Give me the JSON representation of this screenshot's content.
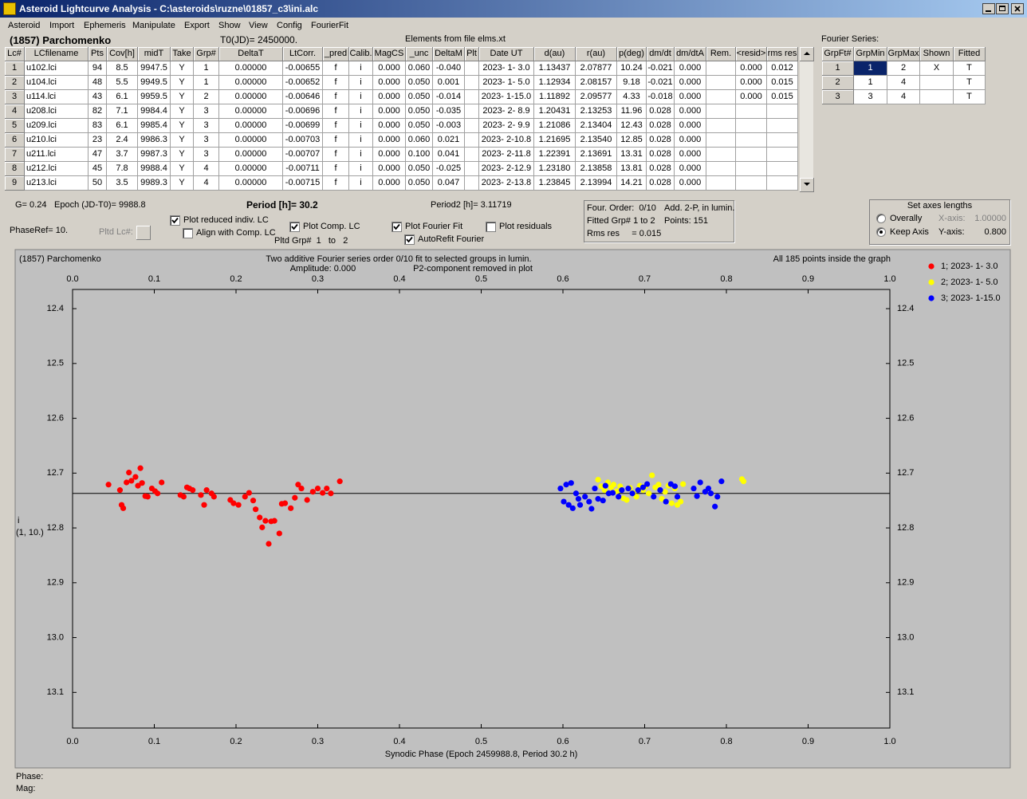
{
  "window": {
    "title": "Asteroid Lightcurve Analysis - C:\\asteroids\\ruzne\\01857_c3\\ini.alc"
  },
  "menu": [
    "Asteroid",
    "Import",
    "Ephemeris",
    "Manipulate",
    "Export",
    "Show",
    "View",
    "Config",
    "FourierFit"
  ],
  "header": {
    "asteroid": "(1857) Parchomenko",
    "t0": "T0(JD)= 2450000.",
    "elements": "Elements from file elms.xt",
    "fourier_title": "Fourier Series:"
  },
  "lc_table": {
    "columns": [
      "Lc#",
      "LCfilename",
      "Pts",
      "Cov[h]",
      "midT",
      "Take",
      "Grp#",
      "DeltaT",
      "LtCorr.",
      "_pred",
      "Calib.",
      "MagCS",
      "_unc",
      "DeltaM",
      "Plt",
      "Date UT",
      "d(au)",
      "r(au)",
      "p(deg)",
      "dm/dt",
      "dm/dtA",
      "Rem.",
      "<resid>",
      "rms res"
    ],
    "rows": [
      [
        "1",
        "u102.lci",
        "94",
        "8.5",
        "9947.5",
        "Y",
        "1",
        "0.00000",
        "-0.00655",
        "f",
        "i",
        "0.000",
        "0.060",
        "-0.040",
        null,
        "2023- 1- 3.0",
        "1.13437",
        "2.07877",
        "10.24",
        "-0.021",
        "0.000",
        null,
        "0.000",
        "0.012"
      ],
      [
        "2",
        "u104.lci",
        "48",
        "5.5",
        "9949.5",
        "Y",
        "1",
        "0.00000",
        "-0.00652",
        "f",
        "i",
        "0.000",
        "0.050",
        "0.001",
        null,
        "2023- 1- 5.0",
        "1.12934",
        "2.08157",
        "9.18",
        "-0.021",
        "0.000",
        null,
        "0.000",
        "0.015"
      ],
      [
        "3",
        "u114.lci",
        "43",
        "6.1",
        "9959.5",
        "Y",
        "2",
        "0.00000",
        "-0.00646",
        "f",
        "i",
        "0.000",
        "0.050",
        "-0.014",
        null,
        "2023- 1-15.0",
        "1.11892",
        "2.09577",
        "4.33",
        "-0.018",
        "0.000",
        null,
        "0.000",
        "0.015"
      ],
      [
        "4",
        "u208.lci",
        "82",
        "7.1",
        "9984.4",
        "Y",
        "3",
        "0.00000",
        "-0.00696",
        "f",
        "i",
        "0.000",
        "0.050",
        "-0.035",
        null,
        "2023- 2- 8.9",
        "1.20431",
        "2.13253",
        "11.96",
        "0.028",
        "0.000",
        null,
        null,
        null
      ],
      [
        "5",
        "u209.lci",
        "83",
        "6.1",
        "9985.4",
        "Y",
        "3",
        "0.00000",
        "-0.00699",
        "f",
        "i",
        "0.000",
        "0.050",
        "-0.003",
        null,
        "2023- 2- 9.9",
        "1.21086",
        "2.13404",
        "12.43",
        "0.028",
        "0.000",
        null,
        null,
        null
      ],
      [
        "6",
        "u210.lci",
        "23",
        "2.4",
        "9986.3",
        "Y",
        "3",
        "0.00000",
        "-0.00703",
        "f",
        "i",
        "0.000",
        "0.060",
        "0.021",
        null,
        "2023- 2-10.8",
        "1.21695",
        "2.13540",
        "12.85",
        "0.028",
        "0.000",
        null,
        null,
        null
      ],
      [
        "7",
        "u211.lci",
        "47",
        "3.7",
        "9987.3",
        "Y",
        "3",
        "0.00000",
        "-0.00707",
        "f",
        "i",
        "0.000",
        "0.100",
        "0.041",
        null,
        "2023- 2-11.8",
        "1.22391",
        "2.13691",
        "13.31",
        "0.028",
        "0.000",
        null,
        null,
        null
      ],
      [
        "8",
        "u212.lci",
        "45",
        "7.8",
        "9988.4",
        "Y",
        "4",
        "0.00000",
        "-0.00711",
        "f",
        "i",
        "0.000",
        "0.050",
        "-0.025",
        null,
        "2023- 2-12.9",
        "1.23180",
        "2.13858",
        "13.81",
        "0.028",
        "0.000",
        null,
        null,
        null
      ],
      [
        "9",
        "u213.lci",
        "50",
        "3.5",
        "9989.3",
        "Y",
        "4",
        "0.00000",
        "-0.00715",
        "f",
        "i",
        "0.000",
        "0.050",
        "0.047",
        null,
        "2023- 2-13.8",
        "1.23845",
        "2.13994",
        "14.21",
        "0.028",
        "0.000",
        null,
        null,
        null
      ]
    ]
  },
  "fourier_table": {
    "columns": [
      "GrpFt#",
      "GrpMin",
      "GrpMax",
      "Shown",
      "Fitted"
    ],
    "rows": [
      [
        "1",
        "1",
        "2",
        "X",
        "T"
      ],
      [
        "2",
        "1",
        "4",
        null,
        "T"
      ],
      [
        "3",
        "3",
        "4",
        null,
        "T"
      ]
    ]
  },
  "info": {
    "g": "G= 0.24",
    "epoch": "Epoch (JD-T0)= 9988.8",
    "period": "Period [h]= 30.2",
    "period2": "Period2 [h]= 3.11719",
    "phaseref": "PhaseRef= 10.",
    "pltd_lc": "Pltd Lc#:",
    "pltd_grp": "Pltd Grp#  1   to   2"
  },
  "checkboxes": [
    {
      "label": "Plot reduced indiv. LC",
      "checked": true
    },
    {
      "label": "Align with Comp. LC",
      "checked": false
    },
    {
      "label": "Plot Comp. LC",
      "checked": true
    },
    {
      "label": "Plot Fourier Fit",
      "checked": true
    },
    {
      "label": "AutoRefit Fourier",
      "checked": true
    },
    {
      "label": "Plot residuals",
      "checked": false
    }
  ],
  "fit_box": [
    "Four. Order:  0/10",
    "Add. 2-P, in lumin.",
    "Fitted Grp# 1 to 2",
    "Points: 151",
    "Rms res     = 0.015"
  ],
  "axes_box": {
    "title": "Set axes lengths",
    "options": [
      {
        "label": "Overally",
        "selected": false,
        "axis": "X-axis:",
        "value": "1.00000"
      },
      {
        "label": "Keep Axis",
        "selected": true,
        "axis": "Y-axis:",
        "value": "0.800"
      }
    ]
  },
  "chart_data": {
    "type": "scatter",
    "title": "(1857) Parchomenko",
    "subtitle": [
      "Two additive Fourier series order 0/10 fit to selected groups in lumin.",
      "Amplitude: 0.000",
      "P2-component removed in plot"
    ],
    "annotation": "All 185 points inside the graph",
    "x_label": "Synodic Phase (Epoch 2459988.8, Period 30.2 h)",
    "y_label": [
      "i",
      "(1, 10.)"
    ],
    "xlim": [
      0,
      1
    ],
    "xticks": [
      {
        "value": 0,
        "label": "0.0"
      },
      0.1,
      0.2,
      0.3,
      0.4,
      0.5,
      0.6,
      0.7,
      0.8,
      0.9,
      {
        "value": 1,
        "label": "1.0"
      }
    ],
    "ylim": [
      12.365,
      13.165
    ],
    "y_inverted": true,
    "yticks": [
      12.4,
      12.5,
      12.6,
      12.7,
      12.8,
      12.9,
      {
        "value": 13,
        "label": "13.0"
      },
      13.1
    ],
    "grid": false,
    "fit_value": 12.737,
    "fit_color": "#000000",
    "legend": "right",
    "series": [
      {
        "name": "1; 2023- 1- 3.0",
        "color": "#ff0000",
        "x": [
          0.044,
          0.058,
          0.06,
          0.062,
          0.066,
          0.069,
          0.072,
          0.077,
          0.08,
          0.083,
          0.085,
          0.089,
          0.092,
          0.097,
          0.101,
          0.104,
          0.109,
          0.132,
          0.136,
          0.14,
          0.143,
          0.147,
          0.157,
          0.161,
          0.164,
          0.17,
          0.173,
          0.193,
          0.197,
          0.203,
          0.211,
          0.216,
          0.221,
          0.224,
          0.229,
          0.232,
          0.236,
          0.24,
          0.243,
          0.247,
          0.253,
          0.256,
          0.26,
          0.267,
          0.272,
          0.276,
          0.28,
          0.287,
          0.294,
          0.3,
          0.306,
          0.311,
          0.316,
          0.327
        ],
        "values": [
          12.721,
          12.731,
          12.758,
          12.764,
          12.717,
          12.699,
          12.714,
          12.707,
          12.723,
          12.691,
          12.718,
          12.742,
          12.743,
          12.728,
          12.733,
          12.737,
          12.717,
          12.74,
          12.743,
          12.726,
          12.728,
          12.731,
          12.74,
          12.758,
          12.731,
          12.737,
          12.743,
          12.749,
          12.755,
          12.758,
          12.743,
          12.736,
          12.75,
          12.766,
          12.781,
          12.799,
          12.787,
          12.829,
          12.788,
          12.787,
          12.81,
          12.756,
          12.755,
          12.764,
          12.745,
          12.721,
          12.728,
          12.749,
          12.734,
          12.728,
          12.736,
          12.728,
          12.737,
          12.715
        ]
      },
      {
        "name": "2; 2023- 1- 5.0",
        "color": "#ffff00",
        "x": [
          0.643,
          0.647,
          0.651,
          0.655,
          0.659,
          0.662,
          0.666,
          0.67,
          0.674,
          0.678,
          0.682,
          0.686,
          0.69,
          0.694,
          0.698,
          0.701,
          0.705,
          0.709,
          0.713,
          0.717,
          0.721,
          0.725,
          0.729,
          0.733,
          0.737,
          0.74,
          0.744,
          0.747,
          0.819,
          0.821
        ],
        "values": [
          12.712,
          12.724,
          12.731,
          12.717,
          12.726,
          12.721,
          12.733,
          12.724,
          12.746,
          12.749,
          12.727,
          12.736,
          12.743,
          12.723,
          12.731,
          12.724,
          12.737,
          12.704,
          12.726,
          12.721,
          12.747,
          12.734,
          12.723,
          12.755,
          12.728,
          12.758,
          12.752,
          12.72,
          12.711,
          12.715
        ]
      },
      {
        "name": "3; 2023- 1-15.0",
        "color": "#0000ff",
        "x": [
          0.597,
          0.601,
          0.604,
          0.607,
          0.61,
          0.612,
          0.616,
          0.619,
          0.621,
          0.627,
          0.632,
          0.635,
          0.639,
          0.643,
          0.649,
          0.652,
          0.656,
          0.661,
          0.668,
          0.672,
          0.68,
          0.685,
          0.692,
          0.698,
          0.703,
          0.711,
          0.719,
          0.726,
          0.732,
          0.737,
          0.74,
          0.76,
          0.764,
          0.768,
          0.774,
          0.778,
          0.781,
          0.786,
          0.789,
          0.794
        ],
        "values": [
          12.728,
          12.752,
          12.721,
          12.758,
          12.718,
          12.764,
          12.737,
          12.747,
          12.758,
          12.743,
          12.752,
          12.765,
          12.728,
          12.747,
          12.75,
          12.723,
          12.737,
          12.736,
          12.743,
          12.731,
          12.728,
          12.737,
          12.731,
          12.726,
          12.72,
          12.743,
          12.731,
          12.752,
          12.72,
          12.724,
          12.743,
          12.728,
          12.742,
          12.717,
          12.734,
          12.728,
          12.737,
          12.761,
          12.743,
          12.715
        ]
      }
    ]
  },
  "status": {
    "phase": "Phase:",
    "mag": "Mag:"
  }
}
